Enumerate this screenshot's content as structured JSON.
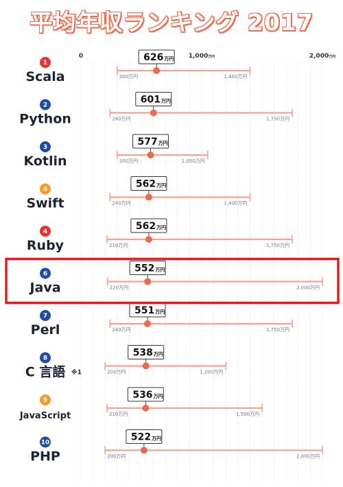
{
  "title": "平均年収ランキング 2017",
  "unit": "万円",
  "highlight_rank_index": 5,
  "colors": {
    "accent": "#f26a4f",
    "range_line": "#f5a290",
    "dot": "#ec6a4c",
    "highlight_box": "#e11d1d",
    "grid": "#cccccc",
    "rank_red": "#e53232",
    "rank_blue": "#1e4ea3",
    "rank_orange": "#f39c2b",
    "text_dark": "#1c2333"
  },
  "chart_data": {
    "type": "range",
    "title": "平均年収ランキング 2017",
    "x_axis": {
      "min": 0,
      "max": 2000,
      "ticks": [
        {
          "value": 0,
          "label": "0",
          "unit": ""
        },
        {
          "value": 1000,
          "label": "1,000",
          "unit": "万円"
        },
        {
          "value": 2000,
          "label": "2,000",
          "unit": "万円"
        }
      ]
    },
    "grid": true,
    "series": [
      {
        "rank": "1",
        "language": "Scala",
        "average": 626,
        "min": 300,
        "max": 1400,
        "min_label": "300万円",
        "max_label": "1,400万円",
        "rank_color": "red"
      },
      {
        "rank": "2",
        "language": "Python",
        "average": 601,
        "min": 240,
        "max": 1750,
        "min_label": "240万円",
        "max_label": "1,750万円",
        "rank_color": "blue"
      },
      {
        "rank": "3",
        "language": "Kotlin",
        "average": 577,
        "min": 300,
        "max": 1050,
        "min_label": "300万円",
        "max_label": "1,050万円",
        "rank_color": "blue"
      },
      {
        "rank": "4",
        "language": "Swift",
        "average": 562,
        "min": 240,
        "max": 1400,
        "min_label": "240万円",
        "max_label": "1,400万円",
        "rank_color": "orange"
      },
      {
        "rank": "4",
        "language": "Ruby",
        "average": 562,
        "min": 216,
        "max": 1750,
        "min_label": "216万円",
        "max_label": "1,750万円",
        "rank_color": "red"
      },
      {
        "rank": "6",
        "language": "Java",
        "average": 552,
        "min": 220,
        "max": 2000,
        "min_label": "220万円",
        "max_label": "2,000万円",
        "rank_color": "blue"
      },
      {
        "rank": "7",
        "language": "Perl",
        "average": 551,
        "min": 240,
        "max": 1750,
        "min_label": "240万円",
        "max_label": "1,750万円",
        "rank_color": "blue"
      },
      {
        "rank": "8",
        "language": "C 言語",
        "note": "※1",
        "average": 538,
        "min": 200,
        "max": 1200,
        "min_label": "200万円",
        "max_label": "1,200万円",
        "rank_color": "blue"
      },
      {
        "rank": "9",
        "language": "JavaScript",
        "average": 536,
        "min": 216,
        "max": 1500,
        "min_label": "216万円",
        "max_label": "1,500万円",
        "rank_color": "orange"
      },
      {
        "rank": "10",
        "language": "PHP",
        "average": 522,
        "min": 200,
        "max": 2000,
        "min_label": "200万円",
        "max_label": "2,000万円",
        "rank_color": "blue"
      }
    ]
  }
}
